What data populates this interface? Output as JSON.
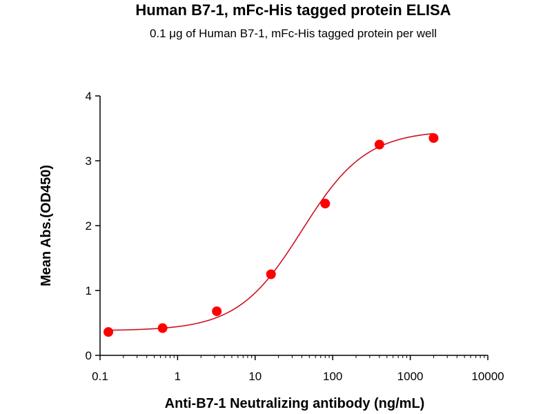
{
  "chart_data": {
    "type": "scatter",
    "title": "Human B7-1, mFc-His tagged protein ELISA",
    "subtitle": "0.1 μg of Human B7-1, mFc-His tagged protein per well",
    "xlabel": "Anti-B7-1 Neutralizing antibody (ng/mL)",
    "ylabel": "Mean Abs.(OD450)",
    "xscale": "log",
    "xlim": [
      0.1,
      10000
    ],
    "ylim": [
      0,
      4
    ],
    "xticks": [
      "0.1",
      "1",
      "10",
      "100",
      "1000",
      "10000"
    ],
    "yticks": [
      "0",
      "1",
      "2",
      "3",
      "4"
    ],
    "grid": false,
    "fit_curve": "4PL sigmoid",
    "series": [
      {
        "color": "#ff0000",
        "curve_color": "#cc1122",
        "x": [
          0.128,
          0.64,
          3.2,
          16,
          80,
          400,
          2000
        ],
        "y": [
          0.36,
          0.42,
          0.68,
          1.25,
          2.34,
          3.25,
          3.35
        ]
      }
    ]
  }
}
